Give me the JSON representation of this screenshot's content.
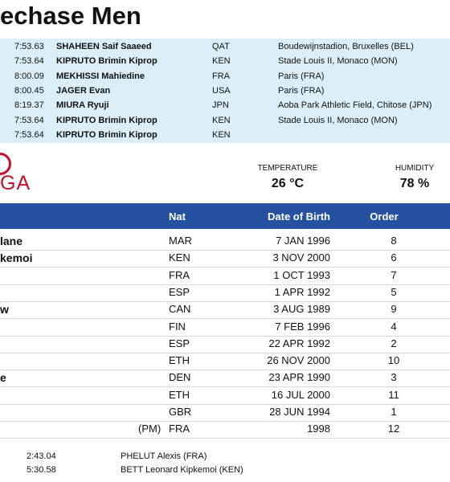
{
  "header": {
    "title": "echase Men"
  },
  "records": [
    [
      "7:53.63",
      "SHAHEEN Saif Saaeed",
      "QAT",
      "Boudewijnstadion, Bruxelles (BEL)"
    ],
    [
      "7:53.64",
      "KIPRUTO Brimin Kiprop",
      "KEN",
      "Stade Louis II, Monaco (MON)"
    ],
    [
      "8:00.09",
      "MEKHISSI Mahiedine",
      "FRA",
      "Paris (FRA)"
    ],
    [
      "8:00.45",
      "JAGER Evan",
      "USA",
      "Paris (FRA)"
    ],
    [
      "8:19.37",
      "MIURA Ryuji",
      "JPN",
      "Aoba Park Athletic Field, Chitose (JPN)"
    ],
    [
      "7:53.64",
      "KIPRUTO Brimin Kiprop",
      "KEN",
      "Stade Louis II, Monaco (MON)"
    ],
    [
      "7:53.64",
      "KIPRUTO Brimin Kiprop",
      "KEN"
    ]
  ],
  "logo": "GA",
  "weather": {
    "temperature_label": "TEMPERATURE",
    "temperature": "26 °C",
    "humidity_label": "HUMIDITY",
    "humidity": "78 %"
  },
  "table": {
    "columns": [
      "Nat",
      "Date of Birth",
      "Order"
    ],
    "rows": [
      {
        "name": "lane",
        "nat": "MAR",
        "dob": "7 JAN 1996",
        "order": "8"
      },
      {
        "name": "kemoi",
        "nat": "KEN",
        "dob": "3 NOV 2000",
        "order": "6"
      },
      {
        "nat": "FRA",
        "dob": "1 OCT 1993",
        "order": "7"
      },
      {
        "nat": "ESP",
        "dob": "1 APR 1992",
        "order": "5"
      },
      {
        "name": "w",
        "nat": "CAN",
        "dob": "3 AUG 1989",
        "order": "9"
      },
      {
        "nat": "FIN",
        "dob": "7 FEB 1996",
        "order": "4"
      },
      {
        "nat": "ESP",
        "dob": "22 APR 1992",
        "order": "2"
      },
      {
        "nat": "ETH",
        "dob": "26 NOV 2000",
        "order": "10"
      },
      {
        "name": "e",
        "nat": "DEN",
        "dob": "23 APR 1990",
        "order": "3"
      },
      {
        "nat": "ETH",
        "dob": "16 JUL 2000",
        "order": "11"
      },
      {
        "nat": "GBR",
        "dob": "28 JUN 1994",
        "order": "1"
      },
      {
        "note": "(PM)",
        "nat": "FRA",
        "dob": "1998",
        "order": "12"
      }
    ]
  },
  "splits": [
    [
      "2:43.04",
      "PHELUT Alexis (FRA)"
    ],
    [
      "5:30.58",
      "BETT Leonard Kipkemoi (KEN)"
    ]
  ]
}
